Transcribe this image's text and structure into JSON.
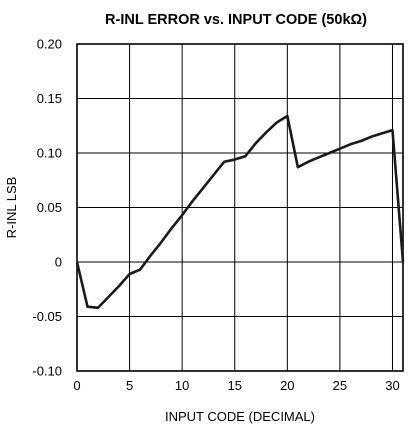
{
  "chart_data": {
    "type": "line",
    "title": "R-INL ERROR vs. INPUT CODE (50kΩ)",
    "xlabel": "INPUT CODE (DECIMAL)",
    "ylabel": "R-INL LSB",
    "xlim": [
      0,
      31
    ],
    "ylim": [
      -0.1,
      0.2
    ],
    "xticks": [
      0,
      5,
      10,
      15,
      20,
      25,
      30
    ],
    "yticks": [
      0.2,
      0.15,
      0.1,
      0.05,
      0,
      -0.05,
      -0.1
    ],
    "xtick_labels": [
      "0",
      "5",
      "10",
      "15",
      "20",
      "25",
      "30"
    ],
    "ytick_labels": [
      "0.20",
      "0.15",
      "0.10",
      "0.05",
      "0",
      "-0.05",
      "-0.10"
    ],
    "grid": true,
    "series": [
      {
        "x": [
          0,
          1,
          2,
          3,
          4,
          5,
          6,
          7,
          8,
          9,
          10,
          11,
          12,
          13,
          14,
          15,
          16,
          17,
          18,
          19,
          20,
          21,
          22,
          23,
          24,
          25,
          26,
          27,
          28,
          29,
          30,
          31
        ],
        "values": [
          0.0,
          -0.041,
          -0.042,
          -0.032,
          -0.022,
          -0.011,
          -0.007,
          0.006,
          0.018,
          0.031,
          0.043,
          0.056,
          0.068,
          0.08,
          0.092,
          0.094,
          0.097,
          0.109,
          0.119,
          0.128,
          0.134,
          0.087,
          0.092,
          0.096,
          0.1,
          0.104,
          0.108,
          0.111,
          0.115,
          0.118,
          0.121,
          0.0
        ]
      }
    ],
    "colors": {
      "line": "#1a1a1a",
      "grid": "#000000",
      "frame": "#000000"
    }
  }
}
